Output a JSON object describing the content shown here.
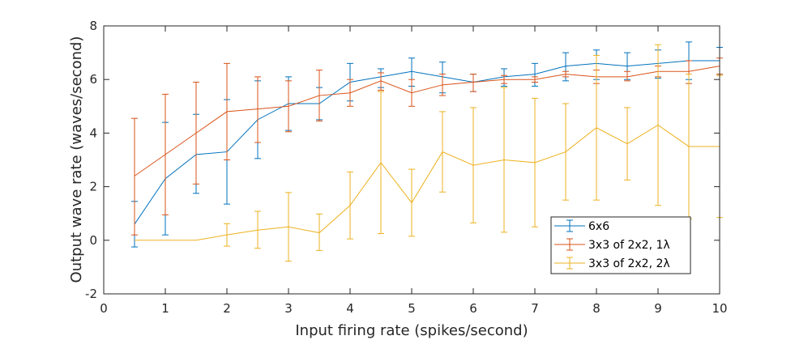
{
  "chart_data": {
    "type": "line",
    "title": "",
    "xlabel": "Input firing rate (spikes/second)",
    "ylabel": "Output wave rate (waves/second)",
    "xlim": [
      0,
      10
    ],
    "ylim": [
      -2,
      8
    ],
    "xticks": [
      0,
      1,
      2,
      3,
      4,
      5,
      6,
      7,
      8,
      9,
      10
    ],
    "yticks": [
      -2,
      0,
      2,
      4,
      6,
      8
    ],
    "grid": false,
    "legend_position": "bottom-right",
    "error_bars": true,
    "series": [
      {
        "name": "6x6",
        "color": "#0072BD",
        "x": [
          0.5,
          1,
          1.5,
          2,
          2.5,
          3,
          3.5,
          4,
          4.5,
          5,
          5.5,
          6,
          6.5,
          7,
          7.5,
          8,
          8.5,
          9,
          9.5,
          10
        ],
        "y": [
          0.6,
          2.3,
          3.2,
          3.3,
          4.5,
          5.1,
          5.1,
          5.9,
          6.1,
          6.3,
          6.1,
          5.9,
          6.1,
          6.2,
          6.5,
          6.6,
          6.5,
          6.6,
          6.7,
          6.7
        ],
        "lower": [
          -0.25,
          0.2,
          1.75,
          1.35,
          3.05,
          4.1,
          4.5,
          5.2,
          5.7,
          5.75,
          5.5,
          5.55,
          5.75,
          5.75,
          5.95,
          6.0,
          6.0,
          6.05,
          6.0,
          6.2
        ],
        "upper": [
          1.45,
          4.4,
          4.7,
          5.25,
          5.95,
          6.1,
          5.7,
          6.6,
          6.4,
          6.8,
          6.65,
          6.2,
          6.4,
          6.6,
          7.0,
          7.1,
          7.0,
          7.1,
          7.4,
          7.2
        ]
      },
      {
        "name": "3x3 of 2x2, 1λ",
        "color": "#D95319",
        "x": [
          0.5,
          1,
          1.5,
          2,
          2.5,
          3,
          3.5,
          4,
          4.5,
          5,
          5.5,
          6,
          6.5,
          7,
          7.5,
          8,
          8.5,
          9,
          9.5,
          10
        ],
        "y": [
          2.4,
          3.2,
          4.0,
          4.8,
          4.9,
          5.0,
          5.4,
          5.5,
          5.95,
          5.5,
          5.8,
          5.9,
          6.0,
          6.0,
          6.2,
          6.1,
          6.1,
          6.3,
          6.3,
          6.5
        ],
        "lower": [
          0.2,
          0.95,
          2.1,
          3.0,
          3.65,
          4.05,
          4.45,
          5.0,
          5.6,
          5.0,
          5.4,
          5.55,
          5.85,
          5.9,
          6.1,
          5.85,
          5.95,
          6.1,
          5.85,
          6.2
        ],
        "upper": [
          4.55,
          5.45,
          5.9,
          6.6,
          6.1,
          5.95,
          6.35,
          6.0,
          6.25,
          6.0,
          6.2,
          6.2,
          6.15,
          6.1,
          6.3,
          6.35,
          6.3,
          6.5,
          6.7,
          6.8
        ]
      },
      {
        "name": "3x3 of 2x2, 2λ",
        "color": "#EDB120",
        "x": [
          0.5,
          1,
          1.5,
          2,
          2.5,
          3,
          3.5,
          4,
          4.5,
          5,
          5.5,
          6,
          6.5,
          7,
          7.5,
          8,
          8.5,
          9,
          9.5,
          10
        ],
        "y": [
          0.0,
          0.0,
          0.0,
          0.2,
          0.38,
          0.5,
          0.28,
          1.3,
          2.9,
          1.4,
          3.3,
          2.8,
          3.0,
          2.9,
          3.3,
          4.2,
          3.6,
          4.3,
          3.5,
          3.5
        ],
        "lower": [
          0.0,
          0.0,
          0.0,
          -0.22,
          -0.3,
          -0.78,
          -0.38,
          0.05,
          0.25,
          0.15,
          1.8,
          0.65,
          0.3,
          0.5,
          1.5,
          1.5,
          2.25,
          1.3,
          0.8,
          0.85
        ],
        "upper": [
          0.0,
          0.0,
          0.0,
          0.62,
          1.08,
          1.78,
          0.98,
          2.55,
          5.55,
          2.65,
          4.8,
          4.95,
          5.7,
          5.3,
          5.1,
          6.9,
          4.95,
          7.3,
          6.2,
          6.15
        ]
      }
    ]
  }
}
